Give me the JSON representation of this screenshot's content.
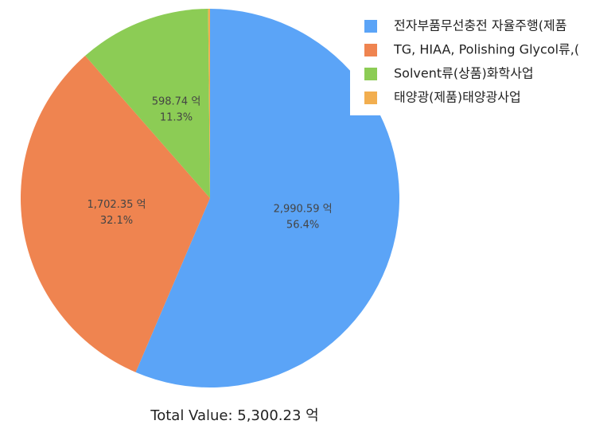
{
  "chart_data": {
    "type": "pie",
    "categories": [
      "전자부품무선충전 자율주행(제품",
      "TG, HIAA, Polishing Glycol류,(",
      "Solvent류(상품)화학사업",
      "태양광(제품)태양광사업"
    ],
    "values": [
      2990.59,
      1702.35,
      598.74,
      8.55
    ],
    "value_labels": [
      "2,990.59 억",
      "1,702.35 억",
      "598.74 억",
      null
    ],
    "percent_labels": [
      "56.4%",
      "32.1%",
      "11.3%",
      null
    ],
    "colors": [
      "#5ba4f7",
      "#ef8450",
      "#8ccc55",
      "#f2ae4f"
    ],
    "start": "top",
    "direction": "clockwise",
    "legend": "top-right",
    "total_label": "Total Value: 5,300.23 억"
  }
}
